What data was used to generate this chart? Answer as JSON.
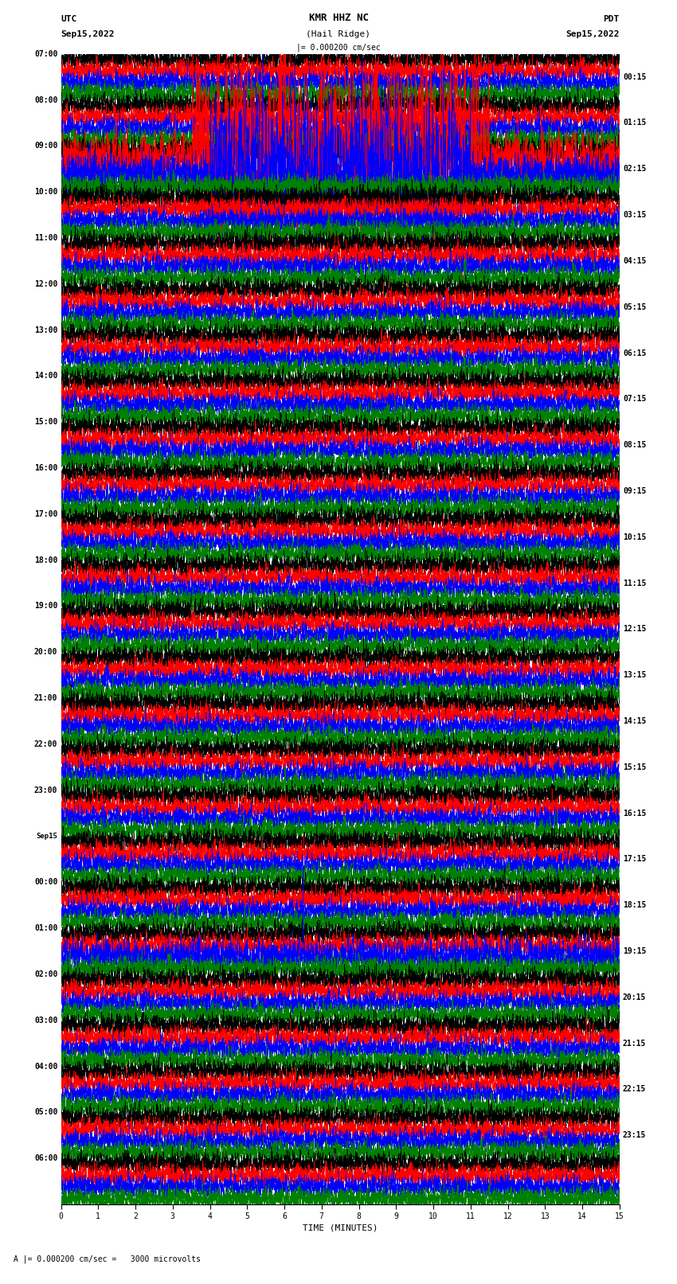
{
  "title_line1": "KMR HHZ NC",
  "title_line2": "(Hail Ridge)",
  "scale_text": "|= 0.000200 cm/sec",
  "bottom_scale_text": "A |= 0.000200 cm/sec =   3000 microvolts",
  "utc_label": "UTC",
  "utc_date": "Sep15,2022",
  "pdt_label": "PDT",
  "pdt_date": "Sep15,2022",
  "xlabel": "TIME (MINUTES)",
  "left_times_utc": [
    "07:00",
    "08:00",
    "09:00",
    "10:00",
    "11:00",
    "12:00",
    "13:00",
    "14:00",
    "15:00",
    "16:00",
    "17:00",
    "18:00",
    "19:00",
    "20:00",
    "21:00",
    "22:00",
    "23:00",
    "Sep15",
    "00:00",
    "01:00",
    "02:00",
    "03:00",
    "04:00",
    "05:00",
    "06:00"
  ],
  "right_times_pdt": [
    "00:15",
    "01:15",
    "02:15",
    "03:15",
    "04:15",
    "05:15",
    "06:15",
    "07:15",
    "08:15",
    "09:15",
    "10:15",
    "11:15",
    "12:15",
    "13:15",
    "14:15",
    "15:15",
    "16:15",
    "17:15",
    "18:15",
    "19:15",
    "20:15",
    "21:15",
    "22:15",
    "23:15"
  ],
  "trace_colors": [
    "black",
    "red",
    "blue",
    "green"
  ],
  "n_rows": 25,
  "traces_per_row": 4,
  "minutes": 15,
  "fig_width": 8.5,
  "fig_height": 16.13,
  "background_color": "white"
}
